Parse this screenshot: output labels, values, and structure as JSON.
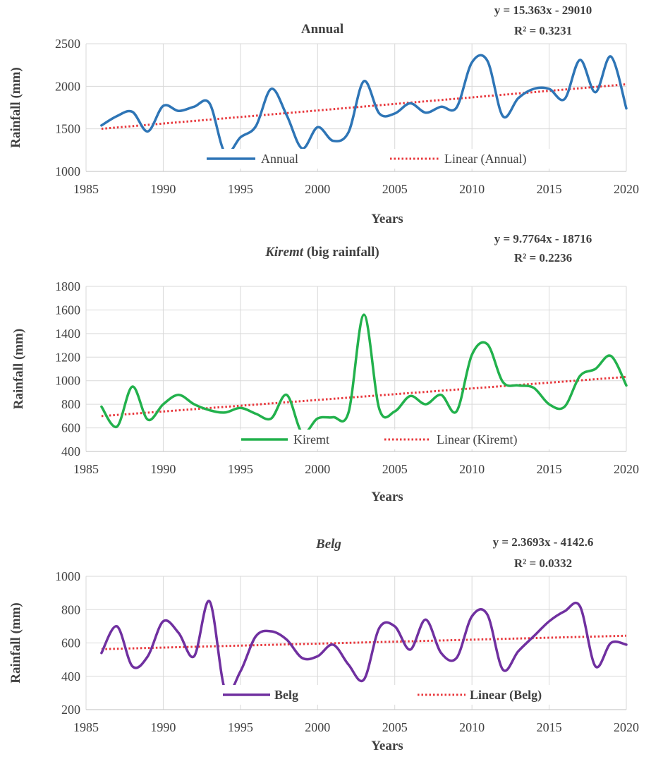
{
  "chart_data": [
    {
      "type": "line",
      "title": "Annual",
      "title_parts": [
        {
          "text": "Annual",
          "italic": false
        }
      ],
      "xlabel": "Years",
      "ylabel": "Rainfall  (mm)",
      "xlim": [
        1985,
        2020
      ],
      "ylim": [
        1000,
        2500
      ],
      "xticks": [
        1985,
        1990,
        1995,
        2000,
        2005,
        2010,
        2015,
        2020
      ],
      "yticks": [
        1000,
        1500,
        2000,
        2500
      ],
      "legend_bold": false,
      "trend_equation": "y = 15.363x - 29010",
      "trend_r2": "R² = 0.3231",
      "trend": {
        "slope": 15.363,
        "intercept": -29010
      },
      "series": [
        {
          "name": "Annual",
          "color": "#2e75b6",
          "x": [
            1986,
            1987,
            1988,
            1989,
            1990,
            1991,
            1992,
            1993,
            1994,
            1995,
            1996,
            1997,
            1998,
            1999,
            2000,
            2001,
            2002,
            2003,
            2004,
            2005,
            2006,
            2007,
            2008,
            2009,
            2010,
            2011,
            2012,
            2013,
            2014,
            2015,
            2016,
            2017,
            2018,
            2019,
            2020
          ],
          "y": [
            1540,
            1650,
            1700,
            1470,
            1770,
            1710,
            1760,
            1800,
            1220,
            1400,
            1530,
            1970,
            1660,
            1270,
            1520,
            1360,
            1460,
            2060,
            1680,
            1680,
            1800,
            1690,
            1760,
            1750,
            2280,
            2300,
            1650,
            1860,
            1970,
            1970,
            1850,
            2310,
            1930,
            2350,
            1740
          ]
        },
        {
          "name": "Linear (Annual)",
          "color": "#e8383d",
          "dashed": true
        }
      ]
    },
    {
      "type": "line",
      "title": "Kiremt (big  rainfall)",
      "title_parts": [
        {
          "text": "Kiremt",
          "italic": true
        },
        {
          "text": " (big  rainfall)",
          "italic": false
        }
      ],
      "xlabel": "Years",
      "ylabel": "Rainfall  (mm)",
      "xlim": [
        1985,
        2020
      ],
      "ylim": [
        400,
        1800
      ],
      "xticks": [
        1985,
        1990,
        1995,
        2000,
        2005,
        2010,
        2015,
        2020
      ],
      "yticks": [
        400,
        600,
        800,
        1000,
        1200,
        1400,
        1600,
        1800
      ],
      "legend_bold": false,
      "trend_equation": "y = 9.7764x - 18716",
      "trend_r2": "R² = 0.2236",
      "trend": {
        "slope": 9.7764,
        "intercept": -18716
      },
      "series": [
        {
          "name": "Kiremt",
          "color": "#22b14c",
          "x": [
            1986,
            1987,
            1988,
            1989,
            1990,
            1991,
            1992,
            1993,
            1994,
            1995,
            1996,
            1997,
            1998,
            1999,
            2000,
            2001,
            2002,
            2003,
            2004,
            2005,
            2006,
            2007,
            2008,
            2009,
            2010,
            2011,
            2012,
            2013,
            2014,
            2015,
            2016,
            2017,
            2018,
            2019,
            2020
          ],
          "y": [
            780,
            610,
            950,
            670,
            800,
            880,
            800,
            750,
            730,
            770,
            720,
            680,
            880,
            560,
            680,
            690,
            730,
            1560,
            760,
            740,
            870,
            800,
            880,
            740,
            1220,
            1310,
            990,
            960,
            940,
            800,
            780,
            1040,
            1100,
            1210,
            960
          ]
        },
        {
          "name": "Linear (Kiremt)",
          "color": "#e8383d",
          "dashed": true
        }
      ]
    },
    {
      "type": "line",
      "title": "Belg",
      "title_parts": [
        {
          "text": "Belg",
          "italic": true
        }
      ],
      "xlabel": "Years",
      "ylabel": "Rainfall  (mm)",
      "xlim": [
        1985,
        2020
      ],
      "ylim": [
        200,
        1000
      ],
      "xticks": [
        1985,
        1990,
        1995,
        2000,
        2005,
        2010,
        2015,
        2020
      ],
      "yticks": [
        200,
        400,
        600,
        800,
        1000
      ],
      "legend_bold": true,
      "trend_equation": "y = 2.3693x - 4142.6",
      "trend_r2": "R² = 0.0332",
      "trend": {
        "slope": 2.3693,
        "intercept": -4142.6
      },
      "series": [
        {
          "name": "Belg",
          "color": "#7030a0",
          "x": [
            1986,
            1987,
            1988,
            1989,
            1990,
            1991,
            1992,
            1993,
            1994,
            1995,
            1996,
            1997,
            1998,
            1999,
            2000,
            2001,
            2002,
            2003,
            2004,
            2005,
            2006,
            2007,
            2008,
            2009,
            2010,
            2011,
            2012,
            2013,
            2014,
            2015,
            2016,
            2017,
            2018,
            2019,
            2020
          ],
          "y": [
            540,
            700,
            460,
            520,
            730,
            660,
            520,
            850,
            320,
            430,
            640,
            670,
            620,
            510,
            520,
            590,
            470,
            380,
            690,
            700,
            560,
            740,
            540,
            510,
            760,
            770,
            440,
            550,
            640,
            730,
            790,
            820,
            460,
            600,
            590
          ]
        },
        {
          "name": "Linear (Belg)",
          "color": "#e8383d",
          "dashed": true
        }
      ]
    }
  ]
}
